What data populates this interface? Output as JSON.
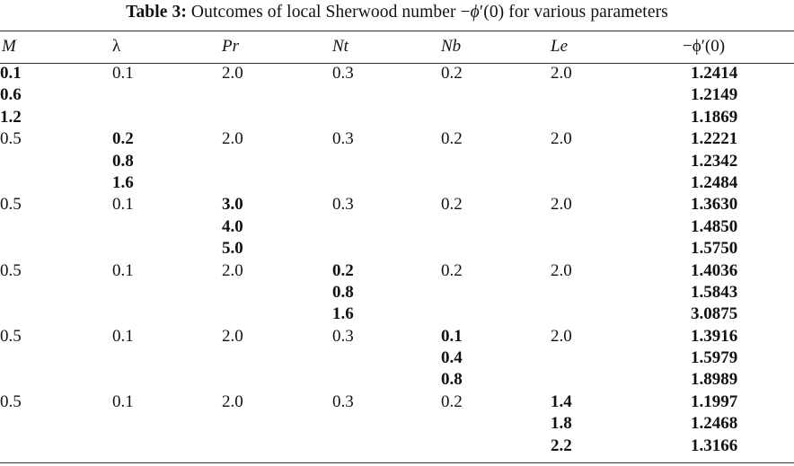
{
  "caption": {
    "label": "Table 3:",
    "text_prefix": "Outcomes of local Sherwood number −",
    "phi": "ϕ",
    "text_suffix": "′(0) for various parameters"
  },
  "table": {
    "headers": [
      "M",
      "λ",
      "Pr",
      "Nt",
      "Nb",
      "Le",
      "−ϕ′(0)"
    ],
    "rows": [
      {
        "cells": [
          "0.1",
          "0.1",
          "2.0",
          "0.3",
          "0.2",
          "2.0",
          "1.2414"
        ],
        "bold": [
          true,
          false,
          false,
          false,
          false,
          false,
          true
        ]
      },
      {
        "cells": [
          "0.6",
          "",
          "",
          "",
          "",
          "",
          "1.2149"
        ],
        "bold": [
          true,
          false,
          false,
          false,
          false,
          false,
          true
        ]
      },
      {
        "cells": [
          "1.2",
          "",
          "",
          "",
          "",
          "",
          "1.1869"
        ],
        "bold": [
          true,
          false,
          false,
          false,
          false,
          false,
          true
        ]
      },
      {
        "cells": [
          "0.5",
          "0.2",
          "2.0",
          "0.3",
          "0.2",
          "2.0",
          "1.2221"
        ],
        "bold": [
          false,
          true,
          false,
          false,
          false,
          false,
          true
        ]
      },
      {
        "cells": [
          "",
          "0.8",
          "",
          "",
          "",
          "",
          "1.2342"
        ],
        "bold": [
          false,
          true,
          false,
          false,
          false,
          false,
          true
        ]
      },
      {
        "cells": [
          "",
          "1.6",
          "",
          "",
          "",
          "",
          "1.2484"
        ],
        "bold": [
          false,
          true,
          false,
          false,
          false,
          false,
          true
        ]
      },
      {
        "cells": [
          "0.5",
          "0.1",
          "3.0",
          "0.3",
          "0.2",
          "2.0",
          "1.3630"
        ],
        "bold": [
          false,
          false,
          true,
          false,
          false,
          false,
          true
        ]
      },
      {
        "cells": [
          "",
          "",
          "4.0",
          "",
          "",
          "",
          "1.4850"
        ],
        "bold": [
          false,
          false,
          true,
          false,
          false,
          false,
          true
        ]
      },
      {
        "cells": [
          "",
          "",
          "5.0",
          "",
          "",
          "",
          "1.5750"
        ],
        "bold": [
          false,
          false,
          true,
          false,
          false,
          false,
          true
        ]
      },
      {
        "cells": [
          "0.5",
          "0.1",
          "2.0",
          "0.2",
          "0.2",
          "2.0",
          "1.4036"
        ],
        "bold": [
          false,
          false,
          false,
          true,
          false,
          false,
          true
        ]
      },
      {
        "cells": [
          "",
          "",
          "",
          "0.8",
          "",
          "",
          "1.5843"
        ],
        "bold": [
          false,
          false,
          false,
          true,
          false,
          false,
          true
        ]
      },
      {
        "cells": [
          "",
          "",
          "",
          "1.6",
          "",
          "",
          "3.0875"
        ],
        "bold": [
          false,
          false,
          false,
          true,
          false,
          false,
          true
        ]
      },
      {
        "cells": [
          "0.5",
          "0.1",
          "2.0",
          "0.3",
          "0.1",
          "2.0",
          "1.3916"
        ],
        "bold": [
          false,
          false,
          false,
          false,
          true,
          false,
          true
        ]
      },
      {
        "cells": [
          "",
          "",
          "",
          "",
          "0.4",
          "",
          "1.5979"
        ],
        "bold": [
          false,
          false,
          false,
          false,
          true,
          false,
          true
        ]
      },
      {
        "cells": [
          "",
          "",
          "",
          "",
          "0.8",
          "",
          "1.8989"
        ],
        "bold": [
          false,
          false,
          false,
          false,
          true,
          false,
          true
        ]
      },
      {
        "cells": [
          "0.5",
          "0.1",
          "2.0",
          "0.3",
          "0.2",
          "1.4",
          "1.1997"
        ],
        "bold": [
          false,
          false,
          false,
          false,
          false,
          true,
          true
        ]
      },
      {
        "cells": [
          "",
          "",
          "",
          "",
          "",
          "1.8",
          "1.2468"
        ],
        "bold": [
          false,
          false,
          false,
          false,
          false,
          true,
          true
        ]
      },
      {
        "cells": [
          "",
          "",
          "",
          "",
          "",
          "2.2",
          "1.3166"
        ],
        "bold": [
          false,
          false,
          false,
          false,
          false,
          true,
          true
        ]
      }
    ]
  }
}
